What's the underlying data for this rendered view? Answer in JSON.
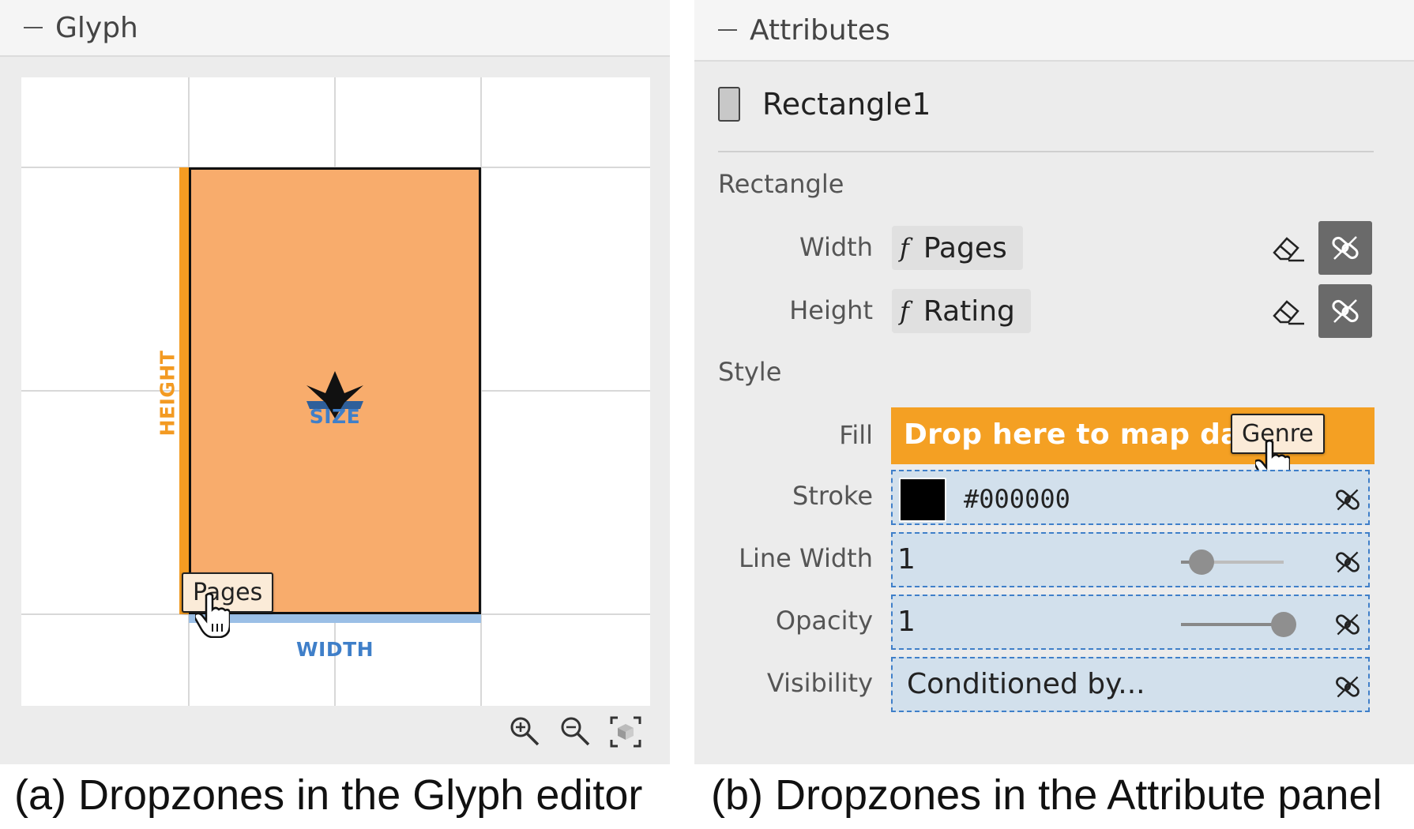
{
  "glyph_panel": {
    "title": "Glyph",
    "dropzones": {
      "height": "HEIGHT",
      "width": "WIDTH",
      "size": "SIZE"
    },
    "drag_chip": "Pages",
    "icons": [
      "zoom-in-icon",
      "zoom-out-icon",
      "fit-to-view-icon"
    ]
  },
  "attribute_panel": {
    "title": "Attributes",
    "object_name": "Rectangle1",
    "sections": {
      "rectangle": "Rectangle",
      "style": "Style"
    },
    "rows": {
      "width": {
        "label": "Width",
        "fx": "f",
        "field": "Pages"
      },
      "height": {
        "label": "Height",
        "fx": "f",
        "field": "Rating"
      },
      "fill": {
        "label": "Fill",
        "drop_text": "Drop here to map data",
        "drag_chip": "Genre"
      },
      "stroke": {
        "label": "Stroke",
        "value": "#000000",
        "swatch_color": "#000000"
      },
      "line_width": {
        "label": "Line Width",
        "value": "1",
        "slider_fraction": 0.2
      },
      "opacity": {
        "label": "Opacity",
        "value": "1",
        "slider_fraction": 1.0
      },
      "visibility": {
        "label": "Visibility",
        "value": "Conditioned by..."
      }
    }
  },
  "captions": {
    "a": "(a) Dropzones in the Glyph editor",
    "b": "(b) Dropzones in the Attribute panel"
  },
  "colors": {
    "orange": "#f4a023",
    "blue": "#3f7fc9",
    "rect_fill": "#f8ac6c"
  }
}
